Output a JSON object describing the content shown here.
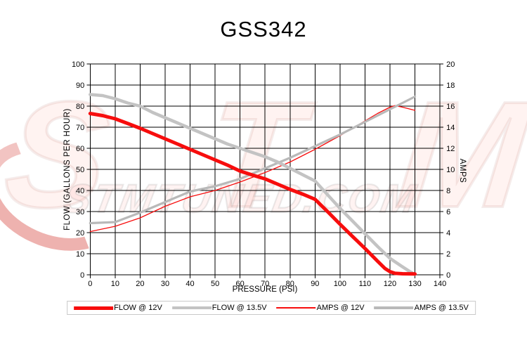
{
  "title": "GSS342",
  "watermark": {
    "letter_s": "S",
    "letter_t": "T",
    "letter_m": "M",
    "domain": "STMTUNED.COM"
  },
  "chart_data": {
    "type": "line",
    "title": "GSS342",
    "xlabel": "PRESSURE (PSI)",
    "ylabel_left": "FLOW (GALLONS PER HOUR)",
    "ylabel_right": "AMPS",
    "xlim": [
      0,
      140
    ],
    "ylim_left": [
      0,
      100
    ],
    "ylim_right": [
      0,
      20
    ],
    "x_ticks": [
      0,
      10,
      20,
      30,
      40,
      50,
      60,
      70,
      80,
      90,
      100,
      110,
      120,
      130,
      140
    ],
    "y_left_ticks": [
      0,
      10,
      20,
      30,
      40,
      50,
      60,
      70,
      80,
      90,
      100
    ],
    "y_right_ticks": [
      0,
      2,
      4,
      6,
      8,
      10,
      12,
      14,
      16,
      18,
      20
    ],
    "grid": true,
    "grid_color": "#000000",
    "legend_position": "bottom",
    "draw_order": [
      2,
      3,
      1,
      0
    ],
    "series": [
      {
        "name": "FLOW @ 12V",
        "axis": "left",
        "color": "#f70d0d",
        "width": 5,
        "x": [
          0,
          5,
          10,
          15,
          20,
          25,
          30,
          35,
          40,
          45,
          50,
          55,
          60,
          65,
          70,
          75,
          80,
          85,
          90,
          95,
          100,
          105,
          110,
          115,
          118,
          120,
          122,
          125,
          130
        ],
        "values": [
          76.5,
          75.5,
          74,
          71.8,
          69.5,
          67,
          64.5,
          62,
          59.5,
          57,
          54.5,
          52,
          49.2,
          47.3,
          45.5,
          43,
          40.5,
          38.3,
          35.8,
          30,
          24,
          18.2,
          12.5,
          6.5,
          3,
          1.5,
          0.7,
          0.5,
          0.4
        ]
      },
      {
        "name": "FLOW @ 13.5V",
        "axis": "left",
        "color": "#c3c3c3",
        "width": 4.5,
        "x": [
          0,
          5,
          10,
          15,
          20,
          25,
          30,
          35,
          40,
          45,
          50,
          55,
          60,
          65,
          70,
          75,
          80,
          85,
          90,
          95,
          100,
          105,
          110,
          115,
          120,
          125,
          128,
          130
        ],
        "values": [
          85.5,
          85,
          83.5,
          81.5,
          80,
          77,
          74.5,
          72,
          69.5,
          67,
          64.5,
          62,
          60,
          58,
          56,
          53.5,
          50.5,
          47.5,
          44.5,
          38,
          31.5,
          25.5,
          19.5,
          13.5,
          7.8,
          3.8,
          1.5,
          0.2
        ]
      },
      {
        "name": "AMPS @ 12V",
        "axis": "right",
        "color": "#f70d0d",
        "width": 1.3,
        "x": [
          0,
          10,
          20,
          30,
          40,
          50,
          60,
          70,
          80,
          90,
          100,
          110,
          115,
          120,
          122,
          125,
          130
        ],
        "values": [
          4.1,
          4.6,
          5.4,
          6.5,
          7.4,
          8.0,
          8.8,
          9.7,
          10.7,
          11.9,
          13.2,
          14.6,
          15.3,
          15.9,
          16.05,
          15.9,
          15.6
        ]
      },
      {
        "name": "AMPS @ 13.5V",
        "axis": "right",
        "color": "#b9b9b9",
        "width": 3.2,
        "x": [
          0,
          10,
          20,
          30,
          40,
          50,
          60,
          70,
          80,
          90,
          100,
          110,
          120,
          125,
          130
        ],
        "values": [
          4.9,
          5.0,
          5.9,
          6.9,
          7.9,
          8.4,
          9.1,
          10.1,
          11.1,
          12.2,
          13.3,
          14.5,
          15.7,
          16.3,
          16.9
        ]
      }
    ]
  }
}
